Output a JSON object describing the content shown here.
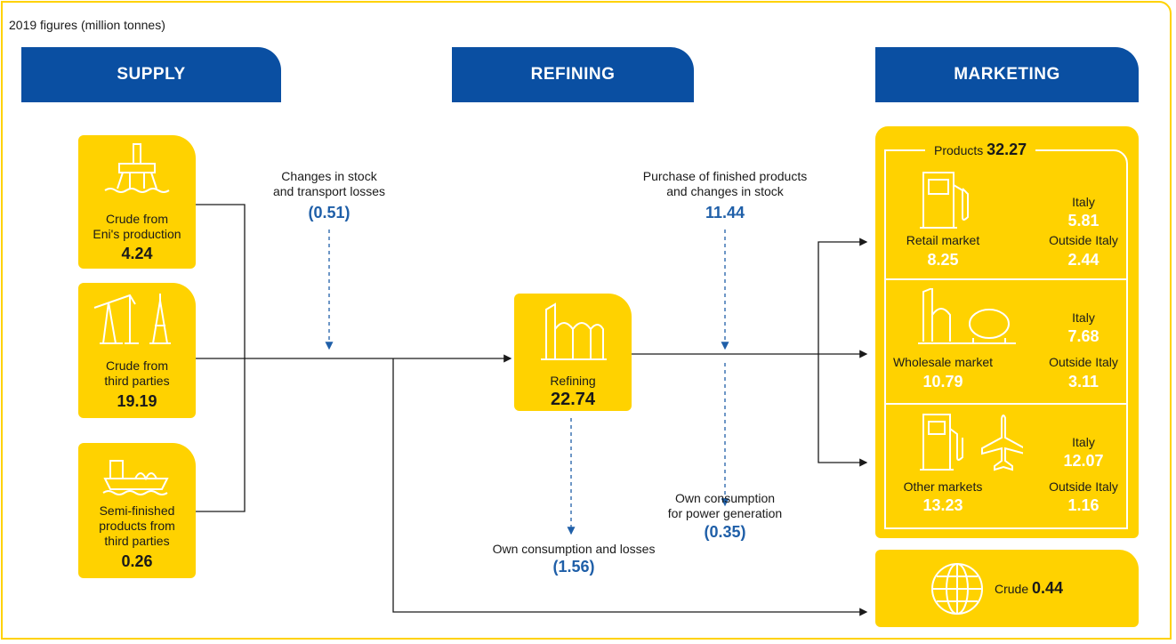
{
  "subtitle": "2019 figures (million tonnes)",
  "headers": {
    "supply": "SUPPLY",
    "refining": "REFINING",
    "marketing": "MARKETING"
  },
  "supply": [
    {
      "label": "Crude from\nEni's production",
      "value": "4.24"
    },
    {
      "label": "Crude from\nthird parties",
      "value": "19.19"
    },
    {
      "label": "Semi-finished\nproducts from\nthird parties",
      "value": "0.26"
    }
  ],
  "flows": {
    "stock_changes": {
      "label": "Changes in stock\nand transport losses",
      "value": "(0.51)"
    },
    "purchase": {
      "label": "Purchase of finished products\nand changes in stock",
      "value": "11.44"
    },
    "power": {
      "label": "Own consumption\nfor power generation",
      "value": "(0.35)"
    },
    "losses": {
      "label": "Own consumption and losses",
      "value": "(1.56)"
    }
  },
  "refining": {
    "label": "Refining",
    "value": "22.74"
  },
  "marketing": {
    "products_label": "Products",
    "products_value": "32.27",
    "markets": [
      {
        "label": "Retail market",
        "value": "8.25",
        "italy_label": "Italy",
        "italy_value": "5.81",
        "outside_label": "Outside Italy",
        "outside_value": "2.44"
      },
      {
        "label": "Wholesale market",
        "value": "10.79",
        "italy_label": "Italy",
        "italy_value": "7.68",
        "outside_label": "Outside Italy",
        "outside_value": "3.11"
      },
      {
        "label": "Other markets",
        "value": "13.23",
        "italy_label": "Italy",
        "italy_value": "12.07",
        "outside_label": "Outside Italy",
        "outside_value": "1.16"
      }
    ],
    "crude_label": "Crude",
    "crude_value": "0.44"
  }
}
